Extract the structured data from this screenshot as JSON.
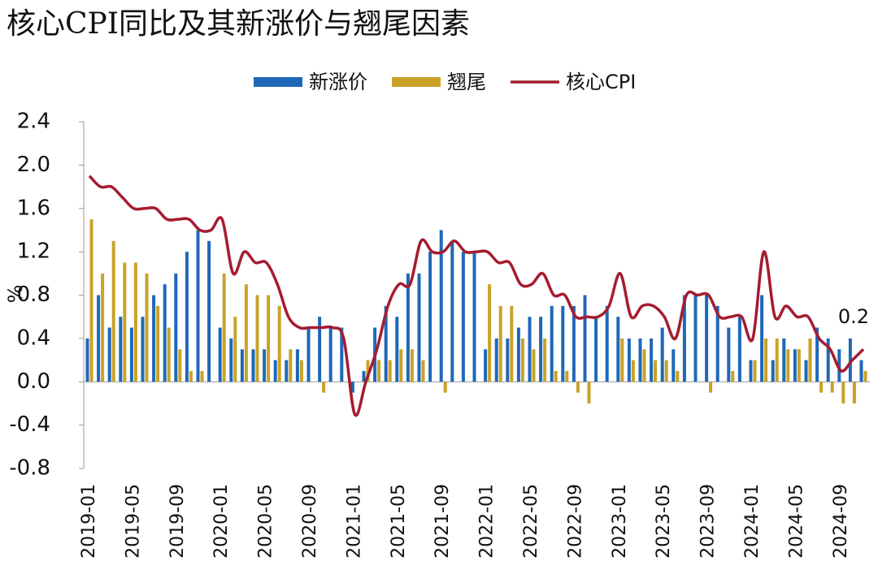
{
  "chart_data": {
    "type": "bar-line",
    "title": "核心CPI同比及其新涨价与翘尾因素",
    "y_label": "%",
    "categories": [
      "2019-01",
      null,
      null,
      null,
      "2019-05",
      null,
      null,
      null,
      "2019-09",
      null,
      null,
      null,
      "2020-01",
      null,
      null,
      null,
      "2020-05",
      null,
      null,
      null,
      "2020-09",
      null,
      null,
      null,
      "2021-01",
      null,
      null,
      null,
      "2021-05",
      null,
      null,
      null,
      "2021-09",
      null,
      null,
      null,
      "2022-01",
      null,
      null,
      null,
      "2022-05",
      null,
      null,
      null,
      "2022-09",
      null,
      null,
      null,
      "2023-01",
      null,
      null,
      null,
      "2023-05",
      null,
      null,
      null,
      "2023-09",
      null,
      null,
      null,
      "2024-01",
      null,
      null,
      null,
      "2024-05",
      null,
      null,
      null,
      "2024-09",
      null,
      null
    ],
    "series": [
      {
        "name": "新涨价",
        "kind": "bar",
        "color": "#1f68b8",
        "values": [
          0.4,
          0.8,
          0.5,
          0.6,
          0.5,
          0.6,
          0.8,
          0.9,
          1.0,
          1.2,
          1.4,
          1.3,
          0.5,
          0.4,
          0.3,
          0.3,
          0.3,
          0.2,
          0.2,
          0.3,
          0.5,
          0.6,
          0.5,
          0.5,
          -0.1,
          0.1,
          0.5,
          0.7,
          0.6,
          1.0,
          1.0,
          1.2,
          1.4,
          1.3,
          1.2,
          1.2,
          0.3,
          0.4,
          0.4,
          0.5,
          0.6,
          0.6,
          0.7,
          0.7,
          0.7,
          0.8,
          0.6,
          0.7,
          0.6,
          0.4,
          0.4,
          0.4,
          0.5,
          0.3,
          0.8,
          0.8,
          0.8,
          0.7,
          0.5,
          0.6,
          0.2,
          0.8,
          0.2,
          0.4,
          0.3,
          0.2,
          0.5,
          0.4,
          0.3,
          0.4,
          0.2
        ]
      },
      {
        "name": "翘尾",
        "kind": "bar",
        "color": "#c9a227",
        "values": [
          1.5,
          1.0,
          1.3,
          1.1,
          1.1,
          1.0,
          0.7,
          0.5,
          0.3,
          0.1,
          0.1,
          0.0,
          1.0,
          0.6,
          0.9,
          0.8,
          0.8,
          0.7,
          0.3,
          0.2,
          0.0,
          -0.1,
          0.0,
          0.0,
          0.0,
          0.2,
          0.2,
          0.2,
          0.3,
          0.3,
          0.2,
          0.0,
          -0.1,
          0.0,
          0.0,
          0.0,
          0.9,
          0.7,
          0.7,
          0.4,
          0.3,
          0.4,
          0.1,
          0.1,
          -0.1,
          -0.2,
          0.0,
          0.0,
          0.4,
          0.2,
          0.3,
          0.2,
          0.2,
          0.1,
          0.0,
          0.0,
          -0.1,
          0.0,
          0.1,
          0.0,
          0.2,
          0.4,
          0.4,
          0.3,
          0.3,
          0.4,
          -0.1,
          -0.1,
          -0.2,
          -0.2,
          0.1
        ]
      },
      {
        "name": "核心CPI",
        "kind": "line",
        "color": "#a51c30",
        "values": [
          1.9,
          1.8,
          1.8,
          1.7,
          1.6,
          1.6,
          1.6,
          1.5,
          1.5,
          1.5,
          1.4,
          1.4,
          1.5,
          1.0,
          1.2,
          1.1,
          1.1,
          0.9,
          0.6,
          0.5,
          0.5,
          0.5,
          0.5,
          0.4,
          -0.3,
          0.0,
          0.3,
          0.7,
          0.9,
          0.9,
          1.3,
          1.2,
          1.2,
          1.3,
          1.2,
          1.2,
          1.2,
          1.1,
          1.1,
          0.9,
          0.9,
          1.0,
          0.8,
          0.8,
          0.6,
          0.6,
          0.6,
          0.7,
          1.0,
          0.6,
          0.7,
          0.7,
          0.6,
          0.4,
          0.8,
          0.8,
          0.8,
          0.6,
          0.6,
          0.6,
          0.4,
          1.2,
          0.6,
          0.7,
          0.6,
          0.6,
          0.4,
          0.3,
          0.1,
          0.2,
          0.3
        ]
      }
    ],
    "annotations": [
      {
        "text": "0.2"
      }
    ],
    "ylim": [
      -0.8,
      2.4
    ],
    "yticks": [
      -0.8,
      -0.4,
      {
        "value": 0,
        "label": "0.0"
      },
      0.4,
      0.8,
      1.2,
      1.6,
      {
        "value": 2,
        "label": "2.0"
      },
      2.4
    ],
    "legend": "top"
  }
}
